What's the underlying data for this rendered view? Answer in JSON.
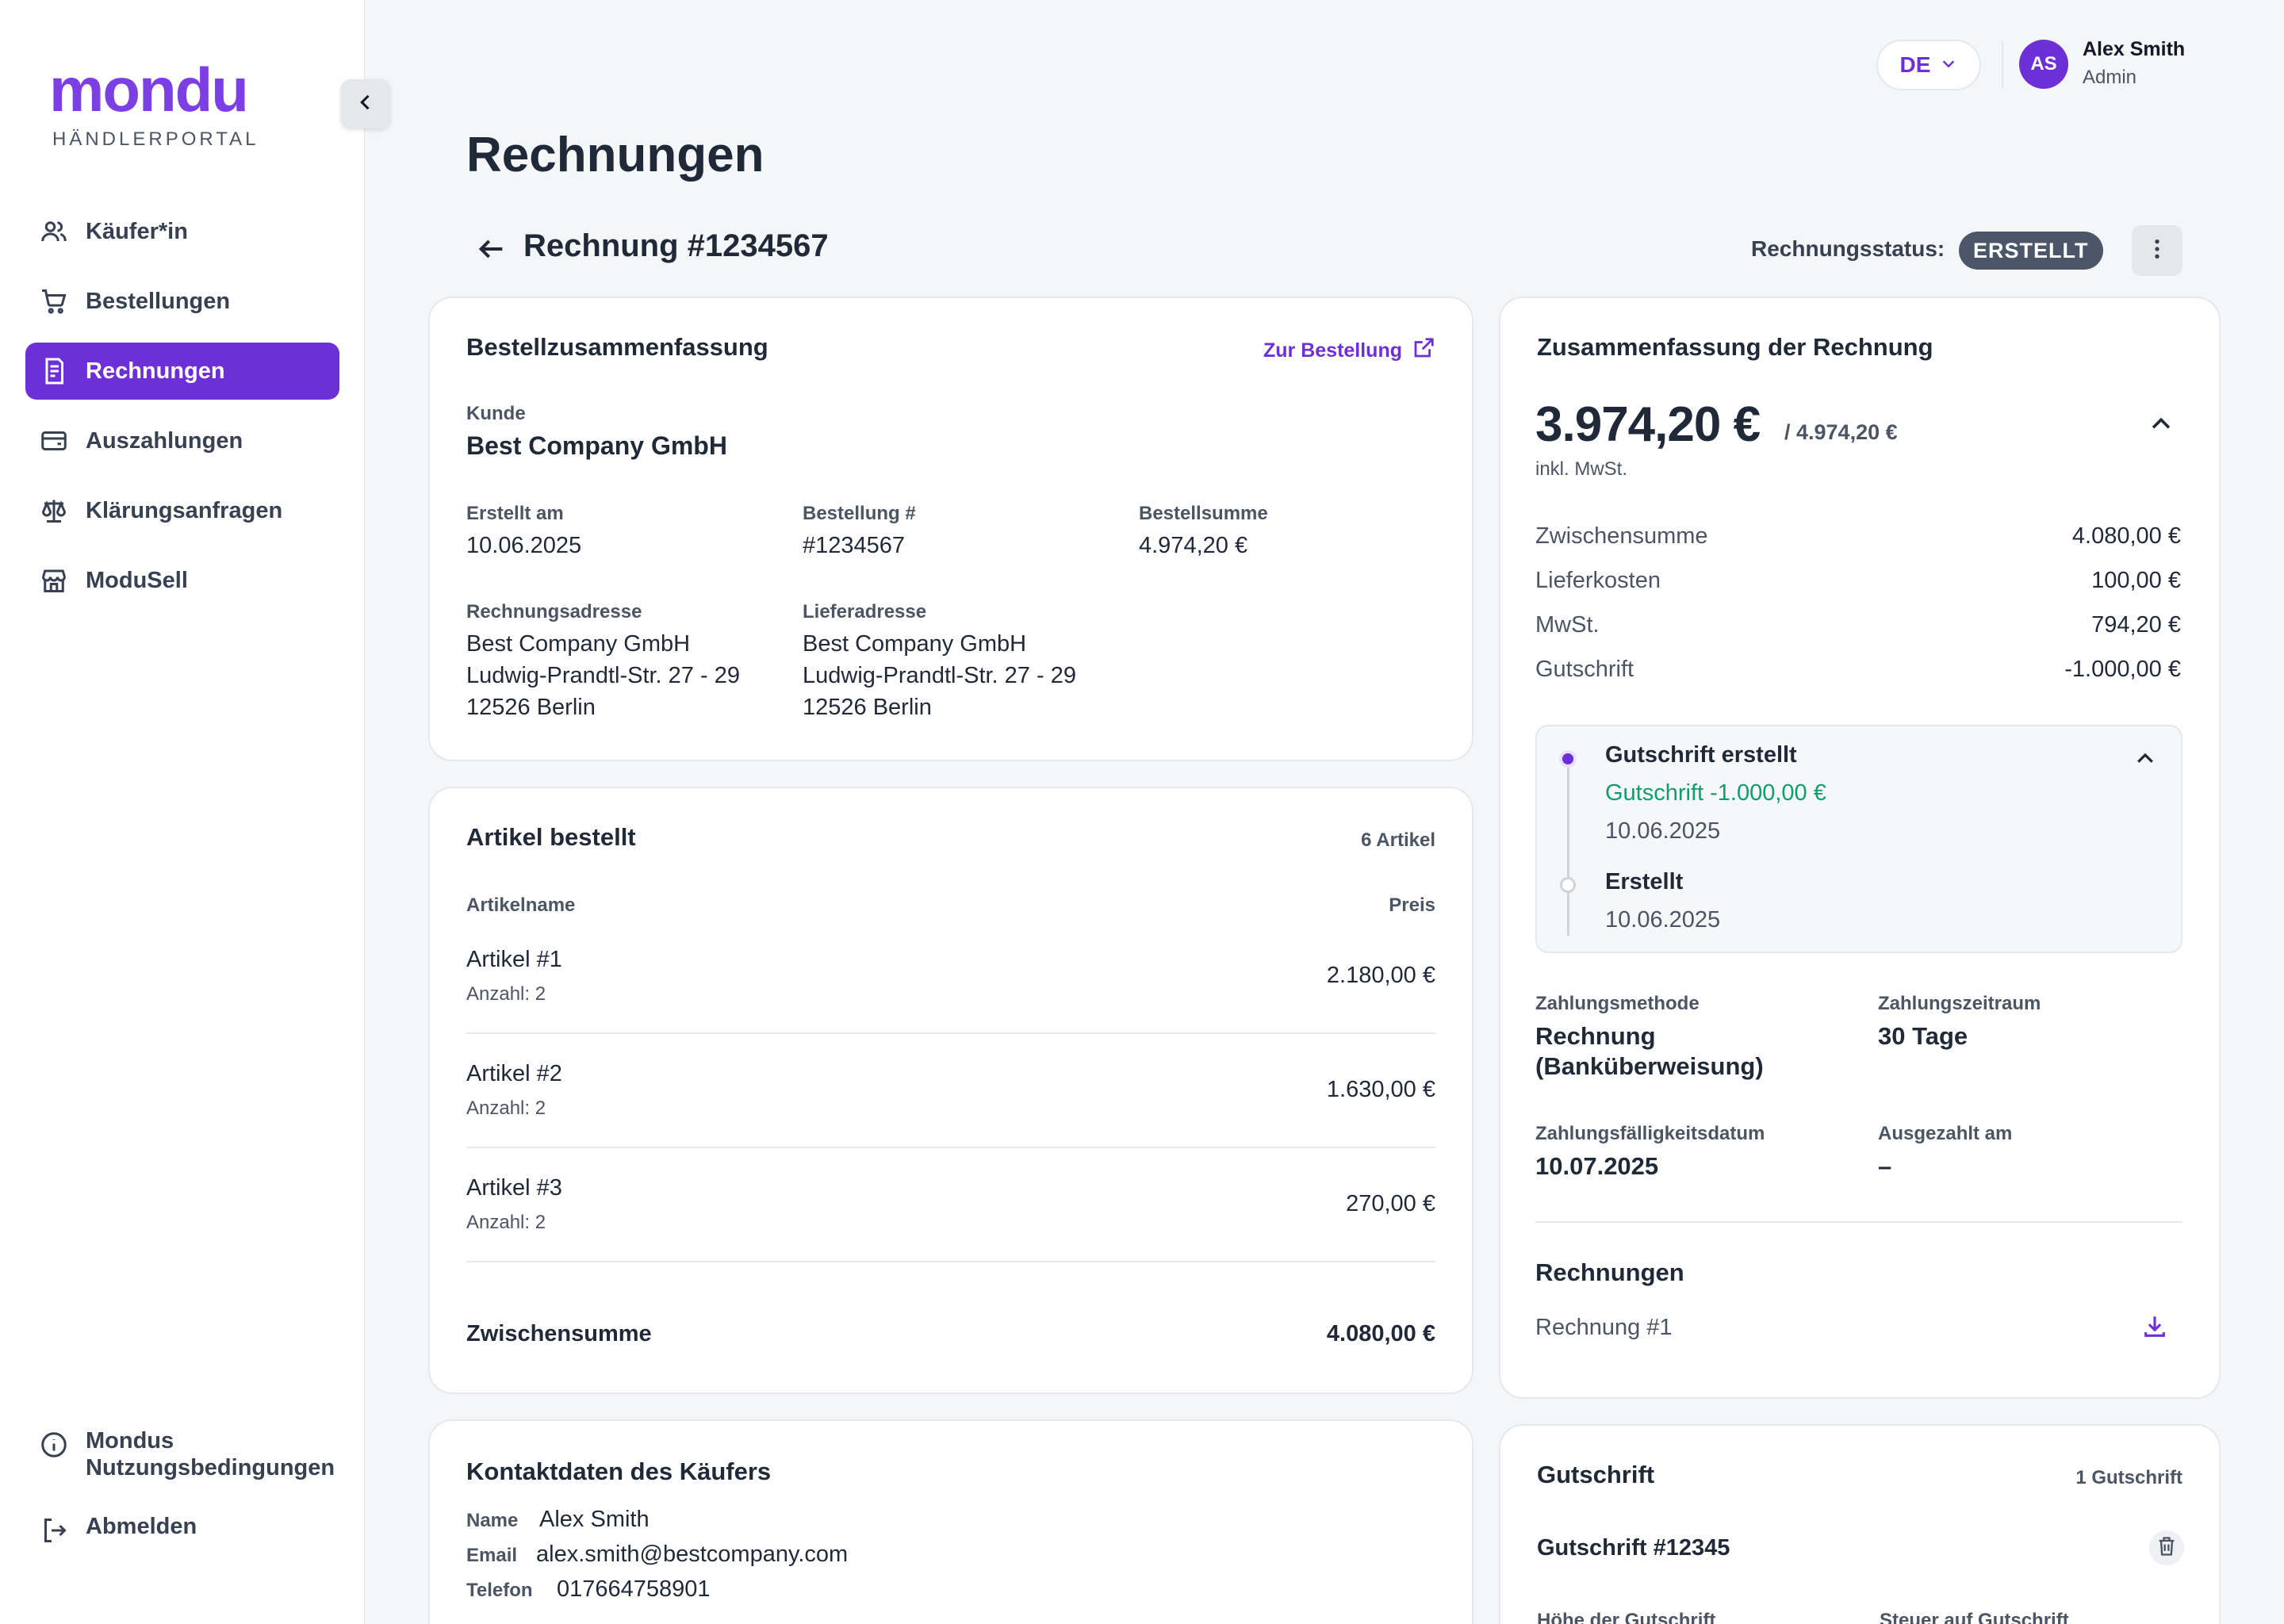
{
  "sidebar": {
    "logo": "mondu",
    "portal": "HÄNDLERPORTAL",
    "items": [
      {
        "label": "Käufer*in",
        "icon": "users-icon"
      },
      {
        "label": "Bestellungen",
        "icon": "cart-icon"
      },
      {
        "label": "Rechnungen",
        "icon": "invoice-icon"
      },
      {
        "label": "Auszahlungen",
        "icon": "wallet-icon"
      },
      {
        "label": "Klärungsanfragen",
        "icon": "scale-icon"
      },
      {
        "label": "ModuSell",
        "icon": "store-icon"
      }
    ],
    "bottom": [
      {
        "label": "Mondus Nutzungsbedingungen",
        "icon": "info-icon"
      },
      {
        "label": "Abmelden",
        "icon": "logout-icon"
      }
    ]
  },
  "topbar": {
    "language": "DE",
    "user": {
      "initials": "AS",
      "name": "Alex Smith",
      "role": "Admin"
    }
  },
  "page": {
    "title": "Rechnungen",
    "invoice_title": "Rechnung #1234567",
    "status_label": "Rechnungsstatus:",
    "status": "ERSTELLT"
  },
  "order_summary": {
    "title": "Bestellzusammenfassung",
    "link": "Zur Bestellung",
    "customer_label": "Kunde",
    "customer": "Best Company GmbH",
    "created_label": "Erstellt am",
    "created": "10.06.2025",
    "order_no_label": "Bestellung #",
    "order_no": "#1234567",
    "total_label": "Bestellsumme",
    "total": "4.974,20 €",
    "billing_label": "Rechnungsadresse",
    "billing": [
      "Best Company GmbH",
      "Ludwig-Prandtl-Str. 27 - 29",
      "12526 Berlin"
    ],
    "shipping_label": "Lieferadresse",
    "shipping": [
      "Best Company GmbH",
      "Ludwig-Prandtl-Str. 27 - 29",
      "12526 Berlin"
    ]
  },
  "items": {
    "title": "Artikel bestellt",
    "count": "6 Artikel",
    "col_name": "Artikelname",
    "col_price": "Preis",
    "rows": [
      {
        "name": "Artikel #1",
        "qty": "Anzahl: 2",
        "price": "2.180,00 €"
      },
      {
        "name": "Artikel #2",
        "qty": "Anzahl: 2",
        "price": "1.630,00 €"
      },
      {
        "name": "Artikel #3",
        "qty": "Anzahl: 2",
        "price": "270,00 €"
      }
    ],
    "subtotal_label": "Zwischensumme",
    "subtotal": "4.080,00 €"
  },
  "contact": {
    "title": "Kontaktdaten des Käufers",
    "name_label": "Name",
    "name": "Alex Smith",
    "email_label": "Email",
    "email": "alex.smith@bestcompany.com",
    "phone_label": "Telefon",
    "phone": "017664758901"
  },
  "invoice_summary": {
    "title": "Zusammenfassung der Rechnung",
    "amount": "3.974,20 €",
    "amount_original": "/ 4.974,20 €",
    "vat_note": "inkl. MwSt.",
    "rows": [
      {
        "label": "Zwischensumme",
        "value": "4.080,00 €"
      },
      {
        "label": "Lieferkosten",
        "value": "100,00 €"
      },
      {
        "label": "MwSt.",
        "value": "794,20 €"
      },
      {
        "label": "Gutschrift",
        "value": "-1.000,00 €"
      }
    ],
    "timeline": [
      {
        "title": "Gutschrift erstellt",
        "detail": "Gutschrift -1.000,00 €",
        "date": "10.06.2025"
      },
      {
        "title": "Erstellt",
        "date": "10.06.2025"
      }
    ],
    "payment_method_label": "Zahlungsmethode",
    "payment_method": "Rechnung (Banküberweisung)",
    "payment_term_label": "Zahlungszeitraum",
    "payment_term": "30 Tage",
    "due_label": "Zahlungsfälligkeitsdatum",
    "due": "10.07.2025",
    "paid_out_label": "Ausgezahlt am",
    "paid_out": "–",
    "invoices_title": "Rechnungen",
    "invoice_file": "Rechnung #1"
  },
  "credit": {
    "title": "Gutschrift",
    "count": "1 Gutschrift",
    "item": "Gutschrift #12345",
    "amount_label": "Höhe der Gutschrift",
    "tax_label": "Steuer auf Gutschrift"
  },
  "colors": {
    "accent": "#6d2fd6",
    "success": "#0f9d6e",
    "badge": "#4b5768"
  }
}
